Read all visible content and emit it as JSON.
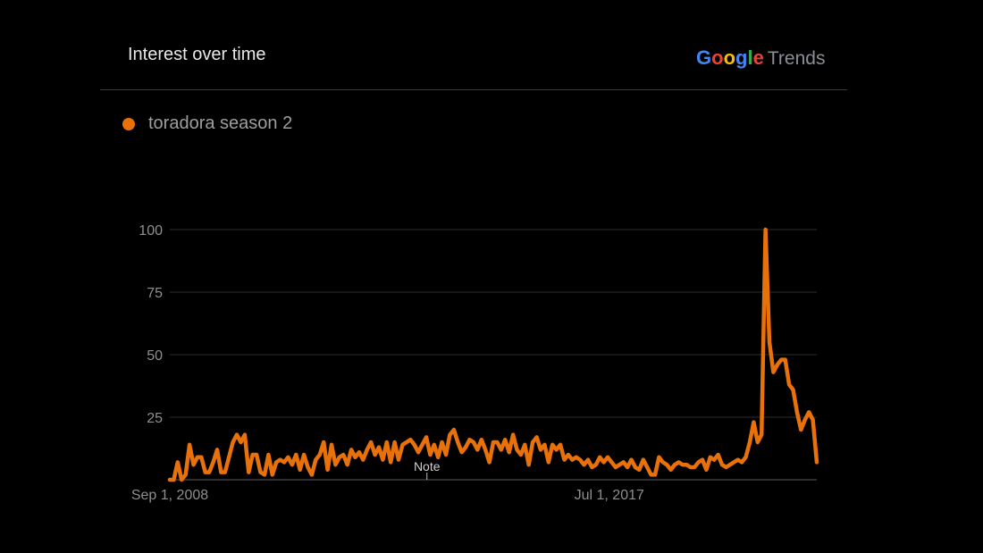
{
  "header": {
    "title": "Interest over time",
    "brand": {
      "google": "Google",
      "trends": "Trends"
    }
  },
  "colors": {
    "series": "#e8710a",
    "google_letters": [
      "#4285F4",
      "#EA4335",
      "#FBBC05",
      "#4285F4",
      "#34A853",
      "#EA4335"
    ]
  },
  "chart_data": {
    "type": "line",
    "series": [
      {
        "name": "toradora season 2",
        "values": [
          0,
          0,
          7,
          0,
          2,
          14,
          6,
          9,
          9,
          3,
          3,
          7,
          12,
          3,
          3,
          9,
          15,
          18,
          15,
          18,
          3,
          10,
          10,
          3,
          2,
          10,
          2,
          7,
          8,
          7,
          9,
          6,
          10,
          4,
          10,
          5,
          2,
          8,
          10,
          15,
          4,
          14,
          6,
          9,
          10,
          6,
          12,
          9,
          11,
          8,
          12,
          15,
          10,
          13,
          8,
          15,
          7,
          15,
          8,
          14,
          15,
          16,
          14,
          11,
          14,
          17,
          10,
          14,
          9,
          15,
          10,
          18,
          20,
          15,
          11,
          13,
          16,
          15,
          12,
          16,
          12,
          7,
          15,
          15,
          12,
          16,
          11,
          18,
          12,
          10,
          14,
          6,
          15,
          17,
          12,
          14,
          7,
          14,
          12,
          14,
          8,
          10,
          8,
          9,
          8,
          6,
          8,
          5,
          6,
          9,
          7,
          9,
          7,
          5,
          6,
          7,
          5,
          8,
          5,
          4,
          8,
          5,
          2,
          2,
          9,
          7,
          6,
          4,
          6,
          7,
          6,
          6,
          5,
          5,
          7,
          8,
          4,
          9,
          8,
          10,
          6,
          5,
          6,
          7,
          8,
          7,
          9,
          15,
          23,
          15,
          18,
          100,
          55,
          43,
          46,
          48,
          48,
          38,
          36,
          27,
          20,
          24,
          27,
          24,
          7
        ]
      }
    ],
    "ylim": [
      0,
      100
    ],
    "y_ticks": [
      25,
      50,
      75,
      100
    ],
    "x_range": [
      "2008-09-01",
      "2021-09-01"
    ],
    "x_ticks": [
      {
        "date": "2008-09-01",
        "label": "Sep 1, 2008"
      },
      {
        "date": "2017-07-01",
        "label": "Jul 1, 2017"
      }
    ],
    "annotations": [
      {
        "date": "2013-11-01",
        "label": "Note"
      }
    ],
    "grid": true,
    "legend": "top-left"
  }
}
